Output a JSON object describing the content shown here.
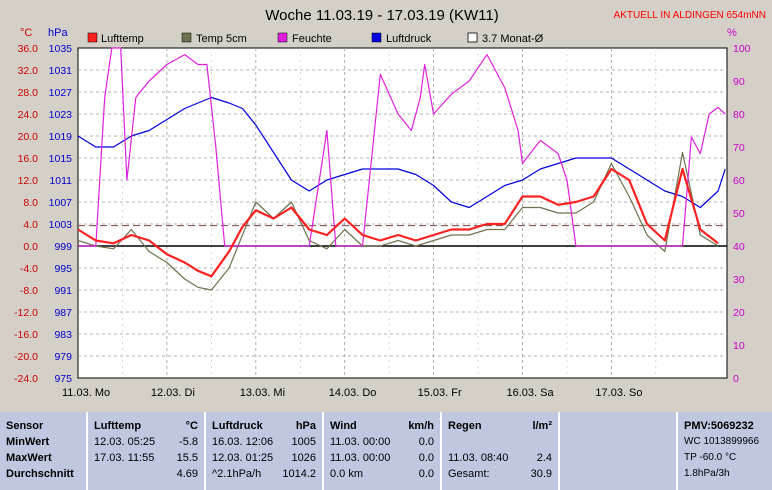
{
  "header": {
    "title": "Woche 11.03.19 - 17.03.19 (KW11)",
    "station": "AKTUELL IN ALDINGEN 654mNN"
  },
  "colors": {
    "lufttemp": "#ff2020",
    "temp5cm": "#707050",
    "feuchte": "#e020e0",
    "luftdruck": "#0000e0",
    "monat": "#804040"
  },
  "chart_data": {
    "type": "line",
    "title": "Woche 11.03.19 - 17.03.19 (KW11)",
    "units": {
      "left_temp": "°C",
      "left_pressure": "hPa",
      "right": "%"
    },
    "y_left_temp": {
      "range": [
        -24,
        36
      ],
      "ticks": [
        "36.0",
        "32.0",
        "28.0",
        "24.0",
        "20.0",
        "16.0",
        "12.0",
        "8.0",
        "4.0",
        "0.0",
        "-4.0",
        "-8.0",
        "-12.0",
        "-16.0",
        "-20.0",
        "-24.0"
      ]
    },
    "y_left_pressure": {
      "range": [
        975,
        1035
      ],
      "ticks": [
        "1035",
        "1031",
        "1027",
        "1023",
        "1019",
        "1015",
        "1011",
        "1007",
        "1003",
        "999",
        "995",
        "991",
        "987",
        "983",
        "979",
        "975"
      ]
    },
    "y_right": {
      "range": [
        0,
        100
      ],
      "ticks": [
        "100",
        "90",
        "80",
        "70",
        "60",
        "50",
        "40",
        "30",
        "20",
        "10",
        "0"
      ]
    },
    "x_ticks": [
      "11.03.  Mo",
      "12.03.  Di",
      "13.03.  Mi",
      "14.03.  Do",
      "15.03.  Fr",
      "16.03.  Sa",
      "17.03.  So"
    ],
    "x_range_days": [
      0,
      7.3
    ],
    "grid": true,
    "legend": [
      "Lufttemp",
      "Temp 5cm",
      "Feuchte",
      "Luftdruck",
      "3.7 Monat-Ø"
    ],
    "reference_line": {
      "name": "3.7 Monat-Ø",
      "value": 3.7
    },
    "series": [
      {
        "name": "Lufttemp",
        "axis": "temp",
        "x": [
          0,
          0.2,
          0.4,
          0.6,
          0.8,
          1.0,
          1.2,
          1.35,
          1.5,
          1.7,
          1.85,
          2.0,
          2.2,
          2.4,
          2.6,
          2.8,
          3.0,
          3.2,
          3.4,
          3.6,
          3.8,
          4.0,
          4.2,
          4.4,
          4.6,
          4.8,
          5.0,
          5.2,
          5.4,
          5.6,
          5.8,
          6.0,
          6.2,
          6.4,
          6.6,
          6.8,
          7.0,
          7.2
        ],
        "y": [
          3,
          1,
          0.5,
          2,
          1,
          -1.5,
          -3,
          -4.5,
          -5.5,
          -1,
          3.5,
          6.5,
          5,
          7,
          3,
          2,
          5,
          2,
          1,
          2,
          1,
          2,
          3,
          3,
          4,
          4,
          9,
          9,
          7.5,
          8,
          9,
          14,
          12,
          4,
          1,
          14,
          3,
          0.5
        ]
      },
      {
        "name": "Temp 5cm",
        "axis": "temp",
        "x": [
          0,
          0.2,
          0.4,
          0.6,
          0.8,
          1.0,
          1.2,
          1.35,
          1.5,
          1.7,
          1.85,
          2.0,
          2.2,
          2.4,
          2.6,
          2.8,
          3.0,
          3.2,
          3.4,
          3.6,
          3.8,
          4.0,
          4.2,
          4.4,
          4.6,
          4.8,
          5.0,
          5.2,
          5.4,
          5.6,
          5.8,
          6.0,
          6.2,
          6.4,
          6.6,
          6.8,
          7.0,
          7.2
        ],
        "y": [
          1,
          0,
          -0.5,
          3,
          -1,
          -3,
          -6,
          -7.5,
          -8,
          -4,
          2,
          8,
          5,
          8,
          1,
          -0.5,
          3,
          0,
          0,
          1,
          0,
          1,
          2,
          2,
          3,
          3,
          7,
          7,
          6,
          6,
          8,
          15,
          9,
          2,
          -1,
          17,
          2,
          0
        ]
      },
      {
        "name": "Feuchte",
        "axis": "humidity",
        "x": [
          0,
          0.2,
          0.3,
          0.38,
          0.48,
          0.55,
          0.65,
          0.8,
          1.0,
          1.2,
          1.35,
          1.45,
          1.55,
          1.65,
          1.8,
          1.9,
          2.0,
          2.3,
          2.6,
          2.8,
          2.9,
          3.0,
          3.1,
          3.2,
          3.4,
          3.6,
          3.75,
          3.85,
          3.9,
          4.0,
          4.2,
          4.4,
          4.6,
          4.8,
          4.95,
          5.0,
          5.2,
          5.4,
          5.5,
          5.6,
          5.8,
          6.0,
          6.2,
          6.4,
          6.55,
          6.6,
          6.8,
          6.9,
          7.0,
          7.1,
          7.2,
          7.28
        ],
        "y": [
          40,
          40,
          85,
          100,
          100,
          60,
          85,
          90,
          95,
          98,
          95,
          95,
          70,
          40,
          40,
          40,
          40,
          40,
          40,
          75,
          40,
          40,
          40,
          40,
          92,
          80,
          75,
          85,
          95,
          80,
          86,
          90,
          98,
          88,
          75,
          65,
          72,
          68,
          60,
          40,
          40,
          40,
          40,
          40,
          40,
          40,
          40,
          73,
          68,
          80,
          82,
          80
        ]
      },
      {
        "name": "Luftdruck",
        "axis": "pressure",
        "x": [
          0,
          0.2,
          0.4,
          0.6,
          0.8,
          1.0,
          1.2,
          1.35,
          1.5,
          1.7,
          1.85,
          2.0,
          2.2,
          2.4,
          2.6,
          2.8,
          3.0,
          3.2,
          3.4,
          3.6,
          3.8,
          4.0,
          4.2,
          4.4,
          4.6,
          4.8,
          5.0,
          5.2,
          5.4,
          5.6,
          5.8,
          6.0,
          6.2,
          6.4,
          6.6,
          6.8,
          7.0,
          7.2,
          7.28
        ],
        "y": [
          1019,
          1017,
          1017,
          1019,
          1020,
          1022,
          1024,
          1025,
          1026,
          1025,
          1024,
          1021,
          1016,
          1011,
          1009,
          1011,
          1012,
          1013,
          1013,
          1013,
          1012,
          1010,
          1007,
          1006,
          1008,
          1010,
          1011,
          1013,
          1014,
          1015,
          1015,
          1015,
          1013,
          1011,
          1009,
          1008,
          1006,
          1009,
          1013
        ]
      }
    ]
  },
  "stats": {
    "headers": {
      "sensor": "Sensor",
      "lufttemp": "Lufttemp",
      "lufttemp_unit": "°C",
      "luftdruck": "Luftdruck",
      "luftdruck_unit": "hPa",
      "wind": "Wind",
      "wind_unit": "km/h",
      "regen": "Regen",
      "regen_unit": "l/m²",
      "pmv": "PMV:5069232"
    },
    "rows": [
      {
        "label": "MinWert",
        "t_date": "12.03.  05:25",
        "t_val": "-5.8",
        "p_date": "16.03.  12:06",
        "p_val": "1005",
        "w_date": "11.03.  00:00",
        "w_val": "0.0",
        "r_date": "",
        "r_val": "",
        "pmv": "WC 1013899966"
      },
      {
        "label": "MaxWert",
        "t_date": "17.03.  11:55",
        "t_val": "15.5",
        "p_date": "12.03.  01:25",
        "p_val": "1026",
        "w_date": "11.03.  00:00",
        "w_val": "0.0",
        "r_date": "11.03.  08:40",
        "r_val": "2.4",
        "pmv": "TP -60.0 °C"
      },
      {
        "label": "Durchschnitt",
        "t_date": "",
        "t_val": "4.69",
        "p_date": "^2.1hPa/h",
        "p_val": "1014.2",
        "w_date": "0.0 km",
        "w_val": "0.0",
        "r_date": "Gesamt:",
        "r_val": "30.9",
        "pmv": "1.8hPa/3h"
      }
    ]
  }
}
